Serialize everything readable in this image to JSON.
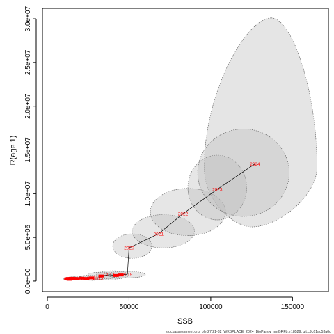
{
  "chart_data": {
    "type": "scatter",
    "title": "",
    "xlabel": "SSB",
    "ylabel": "R(age 1)",
    "xlim": [
      -3000,
      172000
    ],
    "ylim": [
      -1200000,
      31200000
    ],
    "x_ticks": [
      0,
      50000,
      100000,
      150000
    ],
    "x_tick_labels": [
      "0",
      "50000",
      "100000",
      "150000"
    ],
    "y_ticks": [
      0,
      5000000,
      10000000,
      15000000,
      20000000,
      25000000,
      30000000
    ],
    "y_tick_labels": [
      "0.0e+00",
      "5.0e+06",
      "1.0e+07",
      "1.5e+07",
      "2.0e+07",
      "2.5e+07",
      "3.0e+07"
    ],
    "grid": false,
    "point_color": "#ff0000",
    "ellipse_fill": "#bdbdbd",
    "ellipse_stroke": "#555555",
    "points": [
      {
        "year": "",
        "x": 12000,
        "y": 250000
      },
      {
        "year": "",
        "x": 13000,
        "y": 300000
      },
      {
        "year": "",
        "x": 13500,
        "y": 200000
      },
      {
        "year": "",
        "x": 14000,
        "y": 280000
      },
      {
        "year": "",
        "x": 15000,
        "y": 320000
      },
      {
        "year": "",
        "x": 16000,
        "y": 260000
      },
      {
        "year": "",
        "x": 17000,
        "y": 300000
      },
      {
        "year": "",
        "x": 18000,
        "y": 280000
      },
      {
        "year": "",
        "x": 21000,
        "y": 330000
      },
      {
        "year": "",
        "x": 24000,
        "y": 300000
      },
      {
        "year": "",
        "x": 27000,
        "y": 360000
      },
      {
        "year": "2015",
        "x": 31000,
        "y": 320000
      },
      {
        "year": "",
        "x": 33000,
        "y": 580000
      },
      {
        "year": "2017",
        "x": 38000,
        "y": 720000
      },
      {
        "year": "",
        "x": 42000,
        "y": 640000
      },
      {
        "year": "",
        "x": 45000,
        "y": 700000
      },
      {
        "year": "2019",
        "x": 49000,
        "y": 780000
      },
      {
        "year": "2020",
        "x": 50000,
        "y": 3800000
      },
      {
        "year": "2021",
        "x": 68000,
        "y": 5400000
      },
      {
        "year": "2022",
        "x": 83000,
        "y": 7700000
      },
      {
        "year": "2023",
        "x": 104000,
        "y": 10500000
      },
      {
        "year": "2024",
        "x": 127000,
        "y": 13400000
      }
    ],
    "ellipses": [
      {
        "cx": 12500,
        "cy": 250000,
        "rx": 2500,
        "ry": 150000
      },
      {
        "cx": 15500,
        "cy": 300000,
        "rx": 4000,
        "ry": 180000
      },
      {
        "cx": 20000,
        "cy": 320000,
        "rx": 6000,
        "ry": 200000
      },
      {
        "cx": 27000,
        "cy": 380000,
        "rx": 8000,
        "ry": 300000
      },
      {
        "cx": 33000,
        "cy": 600000,
        "rx": 9000,
        "ry": 420000
      },
      {
        "cx": 40000,
        "cy": 700000,
        "rx": 10000,
        "ry": 480000
      },
      {
        "cx": 48000,
        "cy": 740000,
        "rx": 12000,
        "ry": 380000
      },
      {
        "cx": 52000,
        "cy": 4000000,
        "rx": 12000,
        "ry": 1400000
      },
      {
        "cx": 71000,
        "cy": 5700000,
        "rx": 19000,
        "ry": 1900000
      },
      {
        "cx": 86000,
        "cy": 7900000,
        "rx": 23000,
        "ry": 2700000
      },
      {
        "cx": 104000,
        "cy": 10700000,
        "rx": 18000,
        "ry": 3700000
      },
      {
        "cx": 120000,
        "cy": 12400000,
        "rx": 28000,
        "ry": 5000000
      }
    ],
    "big_ellipse": {
      "top_x": 137000,
      "top_y": 30100000,
      "left_x": 96000,
      "right_x": 165000,
      "bottom_x": 125000,
      "bottom_y": 6200000,
      "mid_y": 13000000
    }
  },
  "footer": {
    "text": "stockassessment.org, ple.27.21-32_WKBPLACE_2024_BioParsw_nmGRFb, r18529, git:c9c61ac53a0d"
  }
}
